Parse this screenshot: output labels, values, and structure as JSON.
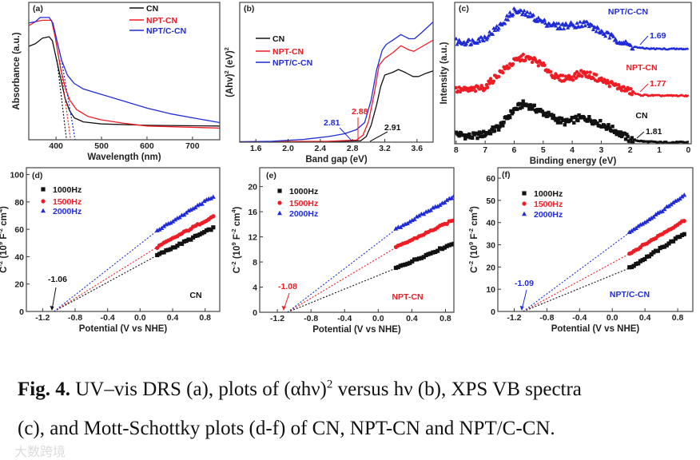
{
  "colors": {
    "black": "#111111",
    "red": "#ee1c24",
    "blue": "#1f2bd6"
  },
  "chart_data": [
    {
      "panel": "(a)",
      "type": "line",
      "xlabel": "Wavelength (nm)",
      "ylabel": "Absorbance (a.u.)",
      "xlim": [
        340,
        760
      ],
      "ylim": [
        0,
        1
      ],
      "xticks": [
        400,
        500,
        600,
        700
      ],
      "yticks": [],
      "legend": "top-right",
      "series": [
        {
          "name": "CN",
          "color": "#111111",
          "points": [
            [
              340,
              0.68
            ],
            [
              355,
              0.7
            ],
            [
              370,
              0.74
            ],
            [
              385,
              0.75
            ],
            [
              392,
              0.72
            ],
            [
              400,
              0.6
            ],
            [
              410,
              0.45
            ],
            [
              420,
              0.3
            ],
            [
              430,
              0.21
            ],
            [
              440,
              0.16
            ],
            [
              460,
              0.13
            ],
            [
              500,
              0.115
            ],
            [
              600,
              0.105
            ],
            [
              760,
              0.1
            ]
          ],
          "tangent": [
            [
              402,
              0.58
            ],
            [
              423,
              0
            ]
          ]
        },
        {
          "name": "NPT-CN",
          "color": "#ee1c24",
          "points": [
            [
              340,
              0.83
            ],
            [
              355,
              0.86
            ],
            [
              370,
              0.87
            ],
            [
              390,
              0.87
            ],
            [
              398,
              0.75
            ],
            [
              410,
              0.52
            ],
            [
              420,
              0.38
            ],
            [
              430,
              0.29
            ],
            [
              445,
              0.22
            ],
            [
              470,
              0.17
            ],
            [
              500,
              0.145
            ],
            [
              550,
              0.12
            ],
            [
              600,
              0.1
            ],
            [
              760,
              0.085
            ]
          ],
          "tangent": [
            [
              408,
              0.58
            ],
            [
              432,
              0
            ]
          ]
        },
        {
          "name": "NPT/C-CN",
          "color": "#1f2bd6",
          "points": [
            [
              340,
              0.85
            ],
            [
              355,
              0.86
            ],
            [
              365,
              0.89
            ],
            [
              385,
              0.89
            ],
            [
              393,
              0.85
            ],
            [
              402,
              0.72
            ],
            [
              412,
              0.58
            ],
            [
              425,
              0.47
            ],
            [
              440,
              0.41
            ],
            [
              460,
              0.37
            ],
            [
              500,
              0.33
            ],
            [
              550,
              0.28
            ],
            [
              600,
              0.23
            ],
            [
              650,
              0.19
            ],
            [
              700,
              0.16
            ],
            [
              760,
              0.125
            ]
          ],
          "tangent": [
            [
              412,
              0.58
            ],
            [
              442,
              0
            ]
          ]
        }
      ]
    },
    {
      "panel": "(b)",
      "type": "line",
      "xlabel": "Band gap (eV)",
      "ylabel": "(Ahv)",
      "ylabel_sup": "2",
      "ylabel_tail": " (eV)",
      "xlim": [
        1.4,
        3.8
      ],
      "ylim": [
        0,
        1
      ],
      "xticks": [
        1.6,
        2.0,
        2.4,
        2.8,
        3.2,
        3.6
      ],
      "yticks": [],
      "legend": "middle-left",
      "series": [
        {
          "name": "CN",
          "color": "#111111",
          "points": [
            [
              1.4,
              0.003
            ],
            [
              2.6,
              0.005
            ],
            [
              2.9,
              0.01
            ],
            [
              2.97,
              0.04
            ],
            [
              3.03,
              0.12
            ],
            [
              3.1,
              0.27
            ],
            [
              3.15,
              0.4
            ],
            [
              3.2,
              0.48
            ],
            [
              3.3,
              0.5
            ],
            [
              3.37,
              0.52
            ],
            [
              3.45,
              0.5
            ],
            [
              3.55,
              0.47
            ],
            [
              3.62,
              0.47
            ],
            [
              3.7,
              0.49
            ],
            [
              3.8,
              0.51
            ]
          ],
          "band_gap": "2.91"
        },
        {
          "name": "NPT-CN",
          "color": "#ee1c24",
          "points": [
            [
              1.4,
              0.003
            ],
            [
              2.5,
              0.006
            ],
            [
              2.85,
              0.015
            ],
            [
              2.93,
              0.05
            ],
            [
              3.0,
              0.15
            ],
            [
              3.07,
              0.35
            ],
            [
              3.13,
              0.55
            ],
            [
              3.2,
              0.6
            ],
            [
              3.3,
              0.64
            ],
            [
              3.4,
              0.69
            ],
            [
              3.5,
              0.66
            ],
            [
              3.56,
              0.65
            ],
            [
              3.65,
              0.68
            ],
            [
              3.8,
              0.73
            ]
          ],
          "band_gap": "2.88"
        },
        {
          "name": "NPT/C-CN",
          "color": "#1f2bd6",
          "points": [
            [
              1.4,
              0.002
            ],
            [
              1.8,
              0.006
            ],
            [
              2.2,
              0.02
            ],
            [
              2.5,
              0.04
            ],
            [
              2.7,
              0.06
            ],
            [
              2.85,
              0.09
            ],
            [
              2.95,
              0.14
            ],
            [
              3.03,
              0.3
            ],
            [
              3.1,
              0.52
            ],
            [
              3.17,
              0.66
            ],
            [
              3.22,
              0.7
            ],
            [
              3.3,
              0.73
            ],
            [
              3.4,
              0.77
            ],
            [
              3.5,
              0.74
            ],
            [
              3.57,
              0.74
            ],
            [
              3.65,
              0.78
            ],
            [
              3.8,
              0.86
            ]
          ],
          "band_gap": "2.81"
        }
      ]
    },
    {
      "panel": "(c)",
      "type": "scatter",
      "xlabel": "Binding energy (eV)",
      "ylabel": "Intensity (a.u.)",
      "xlim": [
        8.05,
        -0.1
      ],
      "ylim": [
        0,
        1
      ],
      "xticks": [
        8,
        7,
        6,
        5,
        4,
        3,
        2,
        1,
        0
      ],
      "yticks": [],
      "series": [
        {
          "name": "CN",
          "color": "#111111",
          "marker": "square",
          "vb_edge": "1.81",
          "profile": [
            [
              8,
              0.07
            ],
            [
              7.5,
              0.05
            ],
            [
              7,
              0.07
            ],
            [
              6.5,
              0.12
            ],
            [
              6,
              0.24
            ],
            [
              5.7,
              0.28
            ],
            [
              5.5,
              0.27
            ],
            [
              5,
              0.22
            ],
            [
              4.5,
              0.17
            ],
            [
              4.2,
              0.15
            ],
            [
              3.8,
              0.18
            ],
            [
              3.5,
              0.18
            ],
            [
              3,
              0.14
            ],
            [
              2.5,
              0.09
            ],
            [
              2,
              0.03
            ],
            [
              1.5,
              0.015
            ],
            [
              1,
              0.01
            ],
            [
              0,
              0.01
            ]
          ]
        },
        {
          "name": "NPT-CN",
          "color": "#ee1c24",
          "marker": "circle",
          "vb_edge": "1.77",
          "profile": [
            [
              8,
              0.38
            ],
            [
              7.5,
              0.38
            ],
            [
              7,
              0.4
            ],
            [
              6.5,
              0.5
            ],
            [
              6,
              0.58
            ],
            [
              5.7,
              0.61
            ],
            [
              5.3,
              0.59
            ],
            [
              5,
              0.55
            ],
            [
              4.5,
              0.46
            ],
            [
              4,
              0.47
            ],
            [
              3.7,
              0.5
            ],
            [
              3.3,
              0.48
            ],
            [
              3,
              0.45
            ],
            [
              2.5,
              0.41
            ],
            [
              2,
              0.37
            ],
            [
              1.7,
              0.345
            ],
            [
              1,
              0.34
            ],
            [
              0,
              0.34
            ]
          ]
        },
        {
          "name": "NPT/C-CN",
          "color": "#1f2bd6",
          "marker": "triangle",
          "vb_edge": "1.69",
          "profile": [
            [
              8,
              0.72
            ],
            [
              7.5,
              0.72
            ],
            [
              7,
              0.75
            ],
            [
              6.5,
              0.83
            ],
            [
              6,
              0.94
            ],
            [
              5.5,
              0.91
            ],
            [
              5,
              0.86
            ],
            [
              4.5,
              0.83
            ],
            [
              4,
              0.84
            ],
            [
              3.5,
              0.85
            ],
            [
              3,
              0.79
            ],
            [
              2.5,
              0.74
            ],
            [
              2,
              0.69
            ],
            [
              1.6,
              0.675
            ],
            [
              1,
              0.67
            ],
            [
              0,
              0.67
            ]
          ]
        }
      ]
    },
    {
      "panel": "(d)",
      "type": "scatter",
      "sample": "CN",
      "xlabel": "Potential (V vs NHE)",
      "ylabel": "C",
      "xlim": [
        -1.4,
        0.98
      ],
      "ylim": [
        0,
        105
      ],
      "xticks": [
        "-1.2",
        "-0.8",
        "-0.4",
        "0.0",
        "0.4",
        "0.8"
      ],
      "yticks": [
        0,
        20,
        40,
        60,
        80,
        100
      ],
      "flatband": "-1.06",
      "intercept": -1.06,
      "flatband_color": "#111111",
      "series": [
        {
          "name": "1000Hz",
          "color": "#111111",
          "marker": "square",
          "x_range": [
            0.21,
            0.9
          ],
          "y_range": [
            41,
            61
          ]
        },
        {
          "name": "1500Hz",
          "color": "#ee1c24",
          "marker": "circle",
          "x_range": [
            0.21,
            0.9
          ],
          "y_range": [
            47,
            69.5
          ]
        },
        {
          "name": "2000Hz",
          "color": "#1f2bd6",
          "marker": "triangle",
          "x_range": [
            0.21,
            0.9
          ],
          "y_range": [
            59,
            84
          ]
        }
      ]
    },
    {
      "panel": "(e)",
      "type": "scatter",
      "sample": "NPT-CN",
      "xlabel": "Potential (V vs NHE)",
      "ylabel": "C",
      "xlim": [
        -1.41,
        0.9
      ],
      "ylim": [
        0,
        23
      ],
      "xticks": [
        "-1.2",
        "-0.8",
        "-0.4",
        "0.0",
        "0.4",
        "0.8"
      ],
      "yticks": [
        0,
        4,
        8,
        12,
        16,
        20
      ],
      "flatband": "-1.08",
      "intercept": -1.08,
      "flatband_color": "#ee1c24",
      "series": [
        {
          "name": "1000Hz",
          "color": "#111111",
          "marker": "square",
          "x_range": [
            0.21,
            0.9
          ],
          "y_range": [
            7.0,
            11.0
          ]
        },
        {
          "name": "1500Hz",
          "color": "#ee1c24",
          "marker": "circle",
          "x_range": [
            0.21,
            0.9
          ],
          "y_range": [
            10.3,
            14.7
          ]
        },
        {
          "name": "2000Hz",
          "color": "#1f2bd6",
          "marker": "triangle",
          "x_range": [
            0.21,
            0.9
          ],
          "y_range": [
            13.2,
            18.4
          ]
        }
      ]
    },
    {
      "panel": "(f)",
      "type": "scatter",
      "sample": "NPT/C-CN",
      "xlabel": "Potential (V vs NHE)",
      "ylabel": "C",
      "xlim": [
        -1.4,
        0.985
      ],
      "ylim": [
        0,
        64.7
      ],
      "xticks": [
        "-1.2",
        "-0.8",
        "-0.4",
        "0.0",
        "0.4",
        "0.8"
      ],
      "yticks": [
        0,
        10,
        20,
        30,
        40,
        50,
        60
      ],
      "flatband": "-1.09",
      "intercept": -1.09,
      "flatband_color": "#1f2bd6",
      "series": [
        {
          "name": "1000Hz",
          "color": "#111111",
          "marker": "square",
          "x_range": [
            0.21,
            0.88
          ],
          "y_range": [
            19.5,
            35
          ]
        },
        {
          "name": "1500Hz",
          "color": "#ee1c24",
          "marker": "circle",
          "x_range": [
            0.21,
            0.88
          ],
          "y_range": [
            26,
            41
          ]
        },
        {
          "name": "2000Hz",
          "color": "#1f2bd6",
          "marker": "triangle",
          "x_range": [
            0.21,
            0.88
          ],
          "y_range": [
            35.5,
            52
          ]
        }
      ]
    }
  ],
  "ms_ylabel": {
    "base": "C",
    "sup1": "-2",
    "mid": " (10",
    "sup2": "9",
    "mid2": " F",
    "sup3": "-2",
    "mid3": " cm",
    "sup4": "4",
    "tail": ")"
  },
  "caption": {
    "label": "Fig. 4.",
    "part1": " UV–vis DRS (a), plots of (αhν)",
    "sup": "2",
    "part2": " versus hν (b), XPS VB spectra",
    "line2": "(c), and Mott-Schottky plots (d-f) of CN, NPT-CN and NPT/C-CN."
  },
  "watermark": "大数跨境"
}
